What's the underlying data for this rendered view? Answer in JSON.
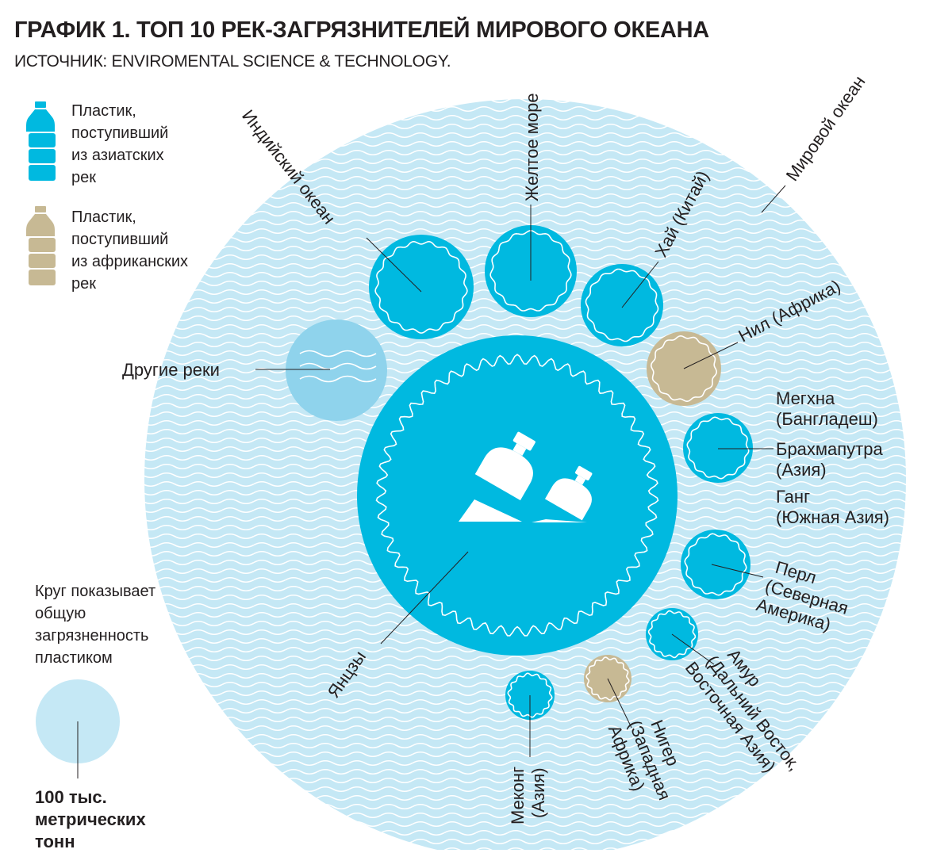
{
  "title": "ГРАФИК 1. ТОП 10 РЕК-ЗАГРЯЗНИТЕЛЕЙ МИРОВОГО ОКЕАНА",
  "subtitle": "ИСТОЧНИК: ENVIROMENTAL SCIENCE & TECHNOLOGY.",
  "legend": {
    "asian": {
      "label": "Пластик,\nпоступивший\nиз азиатских\nрек",
      "icon": "bottle-icon",
      "color": "#00b9e0"
    },
    "african": {
      "label": "Пластик,\nпоступивший\nиз африканских\nрек",
      "icon": "bottle-icon",
      "color": "#c7b994"
    }
  },
  "note": "Круг показывает\nобщую\nзагрязненность\nпластиком",
  "scale_label": "100 тыс.\nметрических\n тонн",
  "colors": {
    "ocean": "#c5e8f5",
    "asian": "#00b9e0",
    "african": "#c7b994",
    "other": "#8fd3ec"
  },
  "labels": {
    "world_ocean": "Мировой океан",
    "indian_ocean": "Индийский океан",
    "yellow_sea": "Желтое море",
    "hai": "Хай (Китай)",
    "nile": "Нил (Африка)",
    "meghna_1": "Мегхна",
    "meghna_2": "(Бангладеш)",
    "brahmaputra_1": "Брахмапутра",
    "brahmaputra_2": "(Азия)",
    "ganges_1": "Ганг",
    "ganges_2": "(Южная Азия)",
    "pearl_1": "Перл",
    "pearl_2": "(Северная",
    "pearl_3": "Америка)",
    "amur_1": "Амур",
    "amur_2": "(Дальний Восток,",
    "amur_3": "Восточная Азия)",
    "niger_1": "Нигер",
    "niger_2": "(Западная",
    "niger_3": "Африка)",
    "mekong_1": "Меконг",
    "mekong_2": "(Азия)",
    "yangtze": "Янцзы",
    "other_rivers": "Другие реки"
  }
}
